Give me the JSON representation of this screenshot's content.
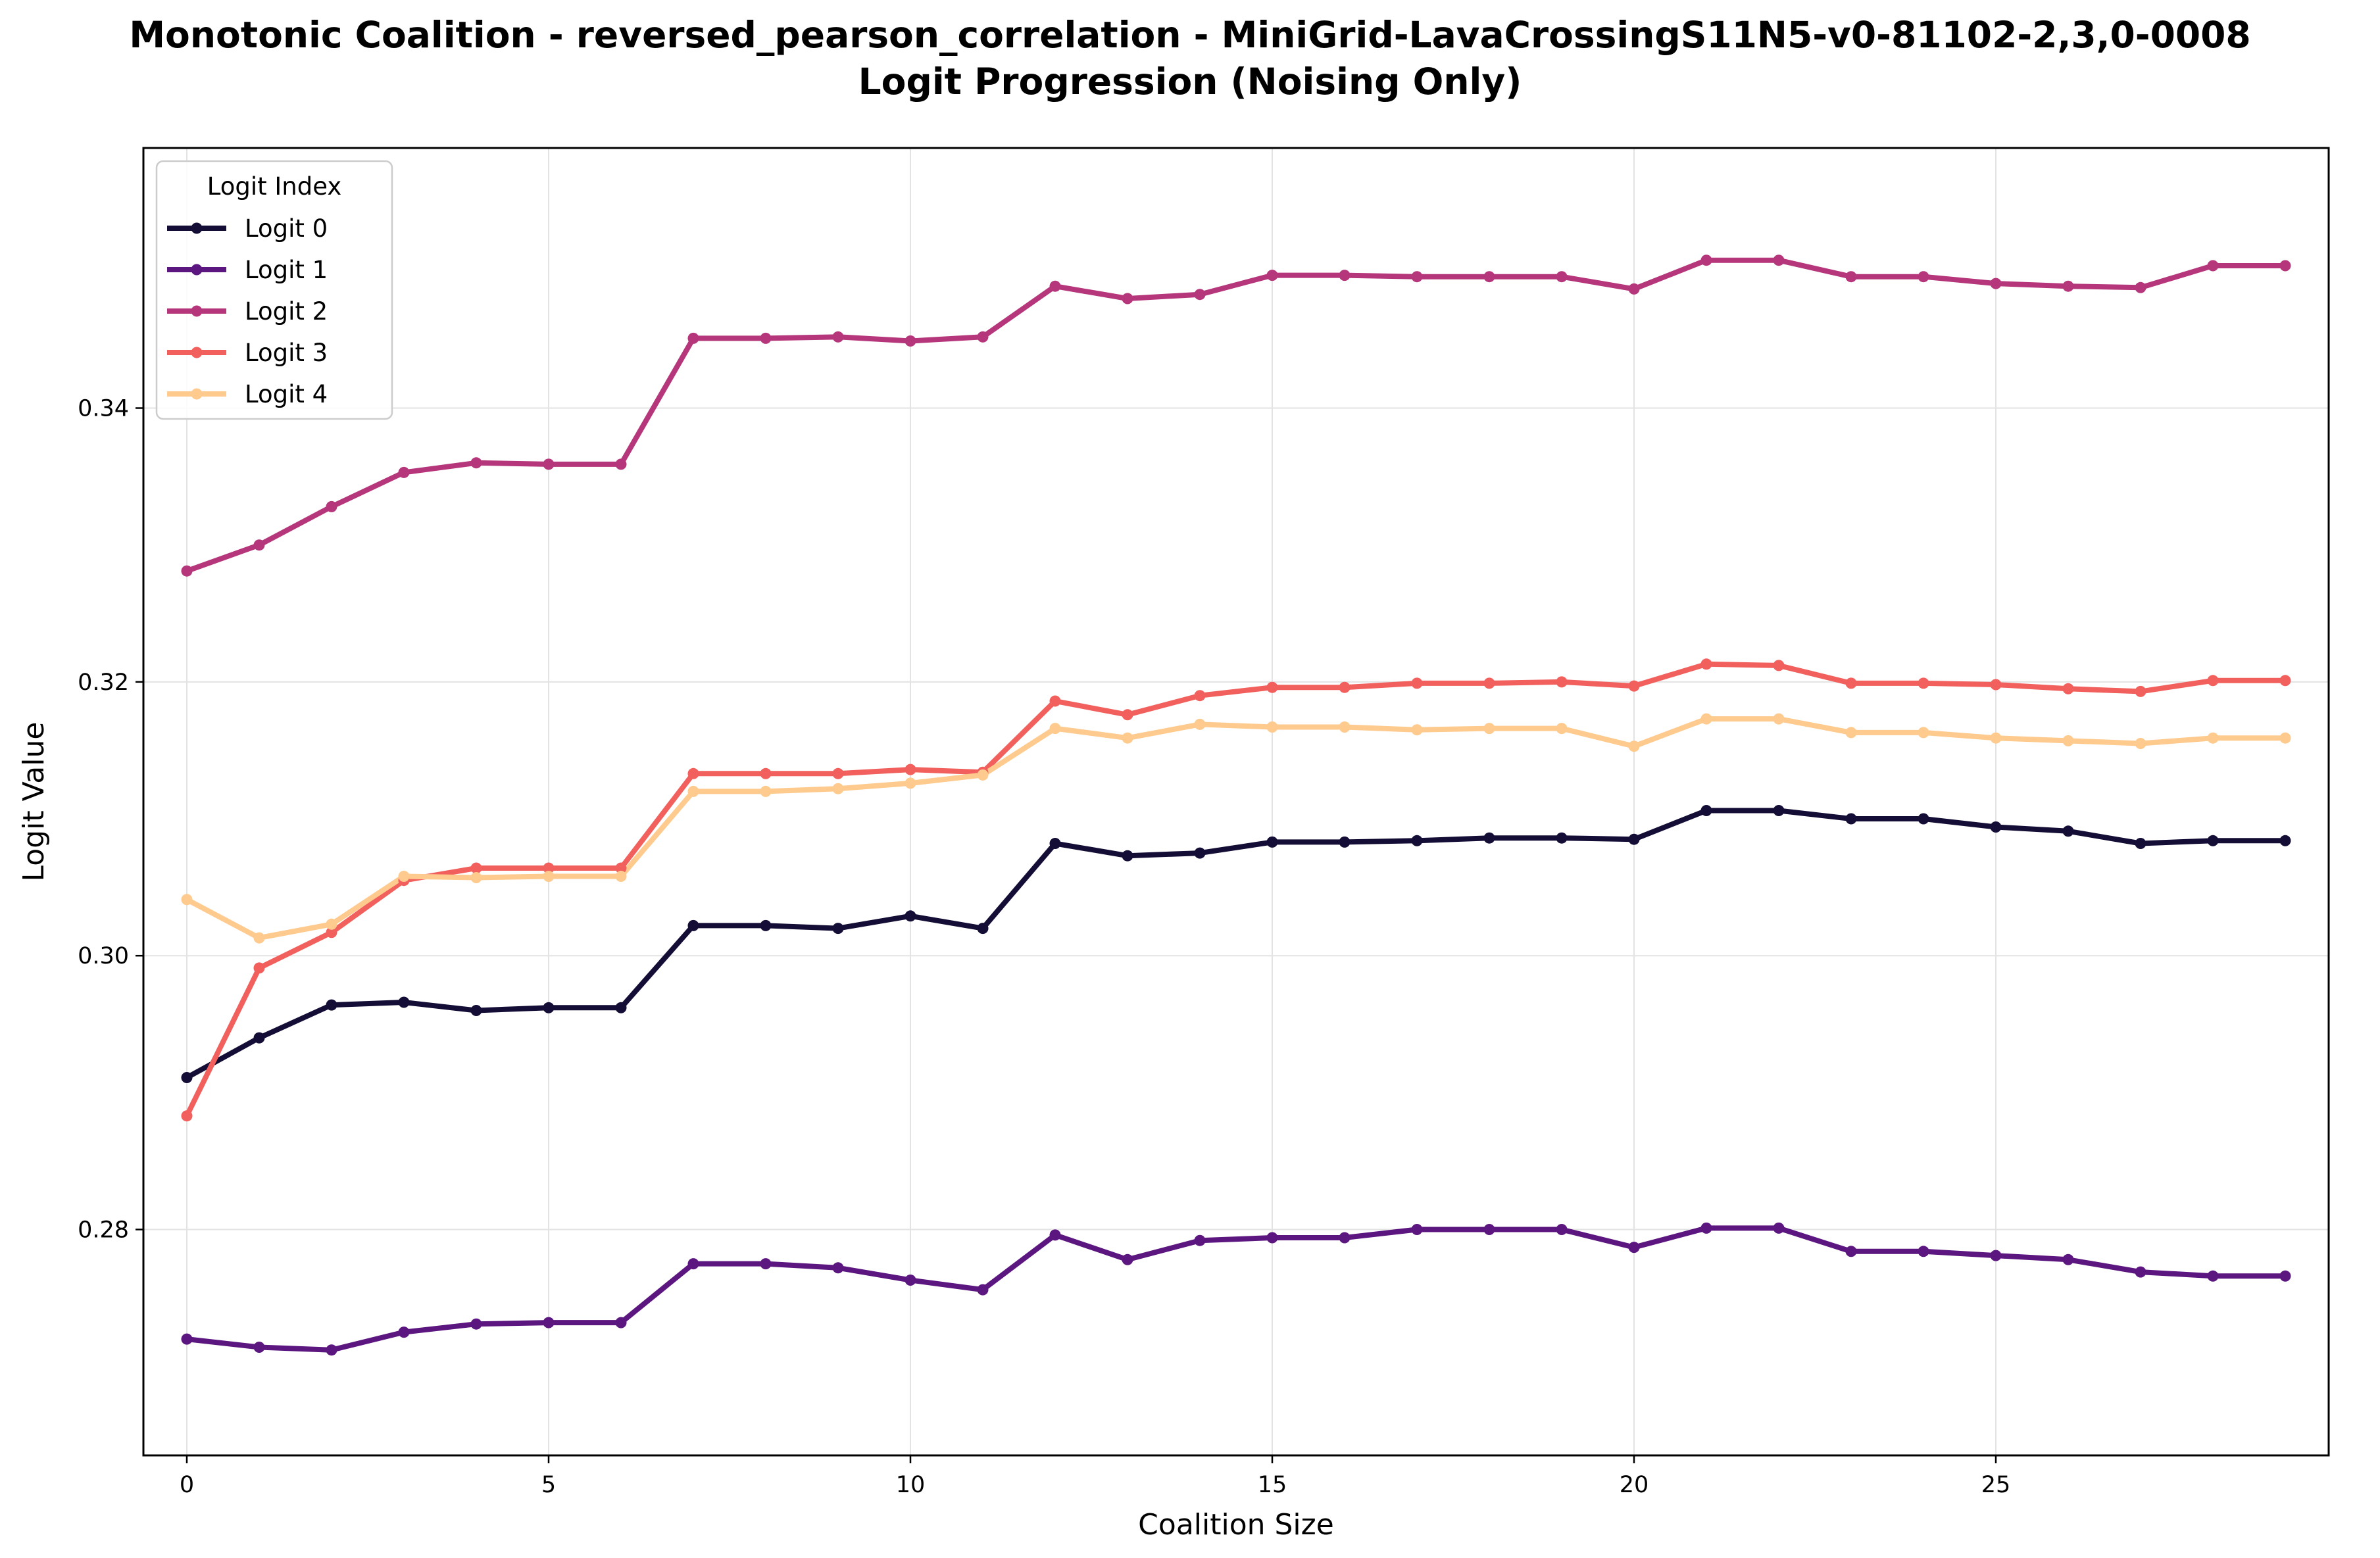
{
  "chart_data": {
    "type": "line",
    "title": "Monotonic Coalition - reversed_pearson_correlation - MiniGrid-LavaCrossingS11N5-v0-81102-2,3,0-0008",
    "subtitle": "Logit Progression (Noising Only)",
    "xlabel": "Coalition Size",
    "ylabel": "Logit Value",
    "xlim": [
      -0.6,
      29.6
    ],
    "ylim": [
      0.2635,
      0.359
    ],
    "xticks": [
      0,
      5,
      10,
      15,
      20,
      25
    ],
    "xtick_labels": [
      "0",
      "5",
      "10",
      "15",
      "20",
      "25"
    ],
    "yticks": [
      0.28,
      0.3,
      0.32,
      0.34
    ],
    "ytick_labels": [
      "0.28",
      "0.30",
      "0.32",
      "0.34"
    ],
    "grid": true,
    "legend": {
      "title": "Logit Index",
      "placement": "top-left"
    },
    "x": [
      0,
      1,
      2,
      3,
      4,
      5,
      6,
      7,
      8,
      9,
      10,
      11,
      12,
      13,
      14,
      15,
      16,
      17,
      18,
      19,
      20,
      21,
      22,
      23,
      24,
      25,
      26,
      27,
      28,
      29
    ],
    "series": [
      {
        "name": "Logit 0",
        "color": "#140e36",
        "values": [
          0.2911,
          0.294,
          0.2964,
          0.2966,
          0.296,
          0.2962,
          0.2962,
          0.3022,
          0.3022,
          0.302,
          0.3029,
          0.302,
          0.3082,
          0.3073,
          0.3075,
          0.3083,
          0.3083,
          0.3084,
          0.3086,
          0.3086,
          0.3085,
          0.3106,
          0.3106,
          0.31,
          0.31,
          0.3094,
          0.3091,
          0.3082,
          0.3084,
          0.3084
        ]
      },
      {
        "name": "Logit 1",
        "color": "#5c167f",
        "values": [
          0.272,
          0.2714,
          0.2712,
          0.2725,
          0.2731,
          0.2732,
          0.2732,
          0.2775,
          0.2775,
          0.2772,
          0.2763,
          0.2756,
          0.2796,
          0.2778,
          0.2792,
          0.2794,
          0.2794,
          0.28,
          0.28,
          0.28,
          0.2787,
          0.2801,
          0.2801,
          0.2784,
          0.2784,
          0.2781,
          0.2778,
          0.2769,
          0.2766,
          0.2766
        ]
      },
      {
        "name": "Logit 2",
        "color": "#b5367a",
        "values": [
          0.3281,
          0.33,
          0.3328,
          0.3353,
          0.336,
          0.3359,
          0.3359,
          0.3451,
          0.3451,
          0.3452,
          0.3449,
          0.3452,
          0.3489,
          0.348,
          0.3483,
          0.3497,
          0.3497,
          0.3496,
          0.3496,
          0.3496,
          0.3487,
          0.3508,
          0.3508,
          0.3496,
          0.3496,
          0.3491,
          0.3489,
          0.3488,
          0.3504,
          0.3504
        ]
      },
      {
        "name": "Logit 3",
        "color": "#f1605d",
        "values": [
          0.2883,
          0.2991,
          0.3017,
          0.3055,
          0.3064,
          0.3064,
          0.3064,
          0.3133,
          0.3133,
          0.3133,
          0.3136,
          0.3134,
          0.3186,
          0.3176,
          0.319,
          0.3196,
          0.3196,
          0.3199,
          0.3199,
          0.32,
          0.3197,
          0.3213,
          0.3212,
          0.3199,
          0.3199,
          0.3198,
          0.3195,
          0.3193,
          0.3201,
          0.3201
        ]
      },
      {
        "name": "Logit 4",
        "color": "#feca8d",
        "values": [
          0.3041,
          0.3013,
          0.3023,
          0.3058,
          0.3057,
          0.3058,
          0.3058,
          0.312,
          0.312,
          0.3122,
          0.3126,
          0.3132,
          0.3166,
          0.3159,
          0.3169,
          0.3167,
          0.3167,
          0.3165,
          0.3166,
          0.3166,
          0.3153,
          0.3173,
          0.3173,
          0.3163,
          0.3163,
          0.3159,
          0.3157,
          0.3155,
          0.3159,
          0.3159
        ]
      }
    ]
  }
}
